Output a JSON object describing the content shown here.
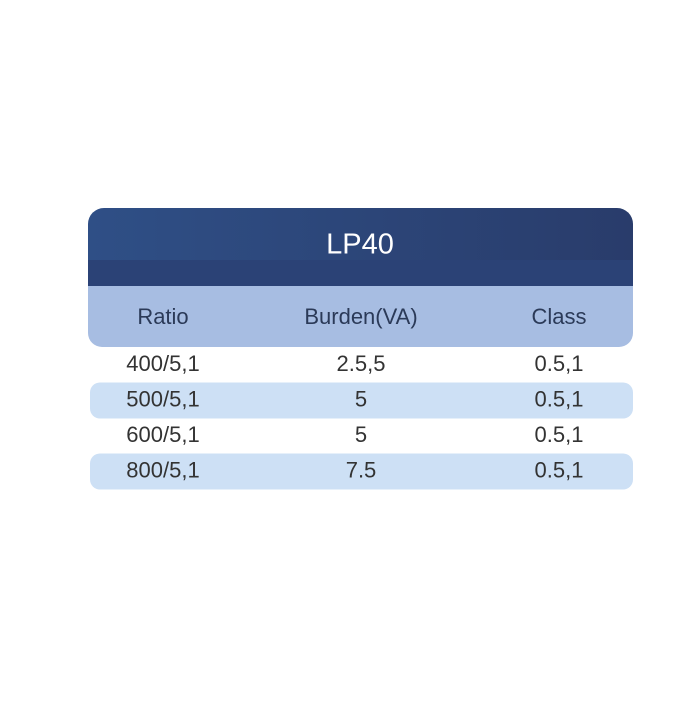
{
  "header": {
    "title": "LP40"
  },
  "table": {
    "columns": [
      "Ratio",
      "Burden(VA)",
      "Class"
    ],
    "rows": [
      [
        "400/5,1",
        "2.5,5",
        "0.5,1"
      ],
      [
        "500/5,1",
        "5",
        "0.5,1"
      ],
      [
        "600/5,1",
        "5",
        "0.5,1"
      ],
      [
        "800/5,1",
        "7.5",
        "0.5,1"
      ]
    ]
  }
}
